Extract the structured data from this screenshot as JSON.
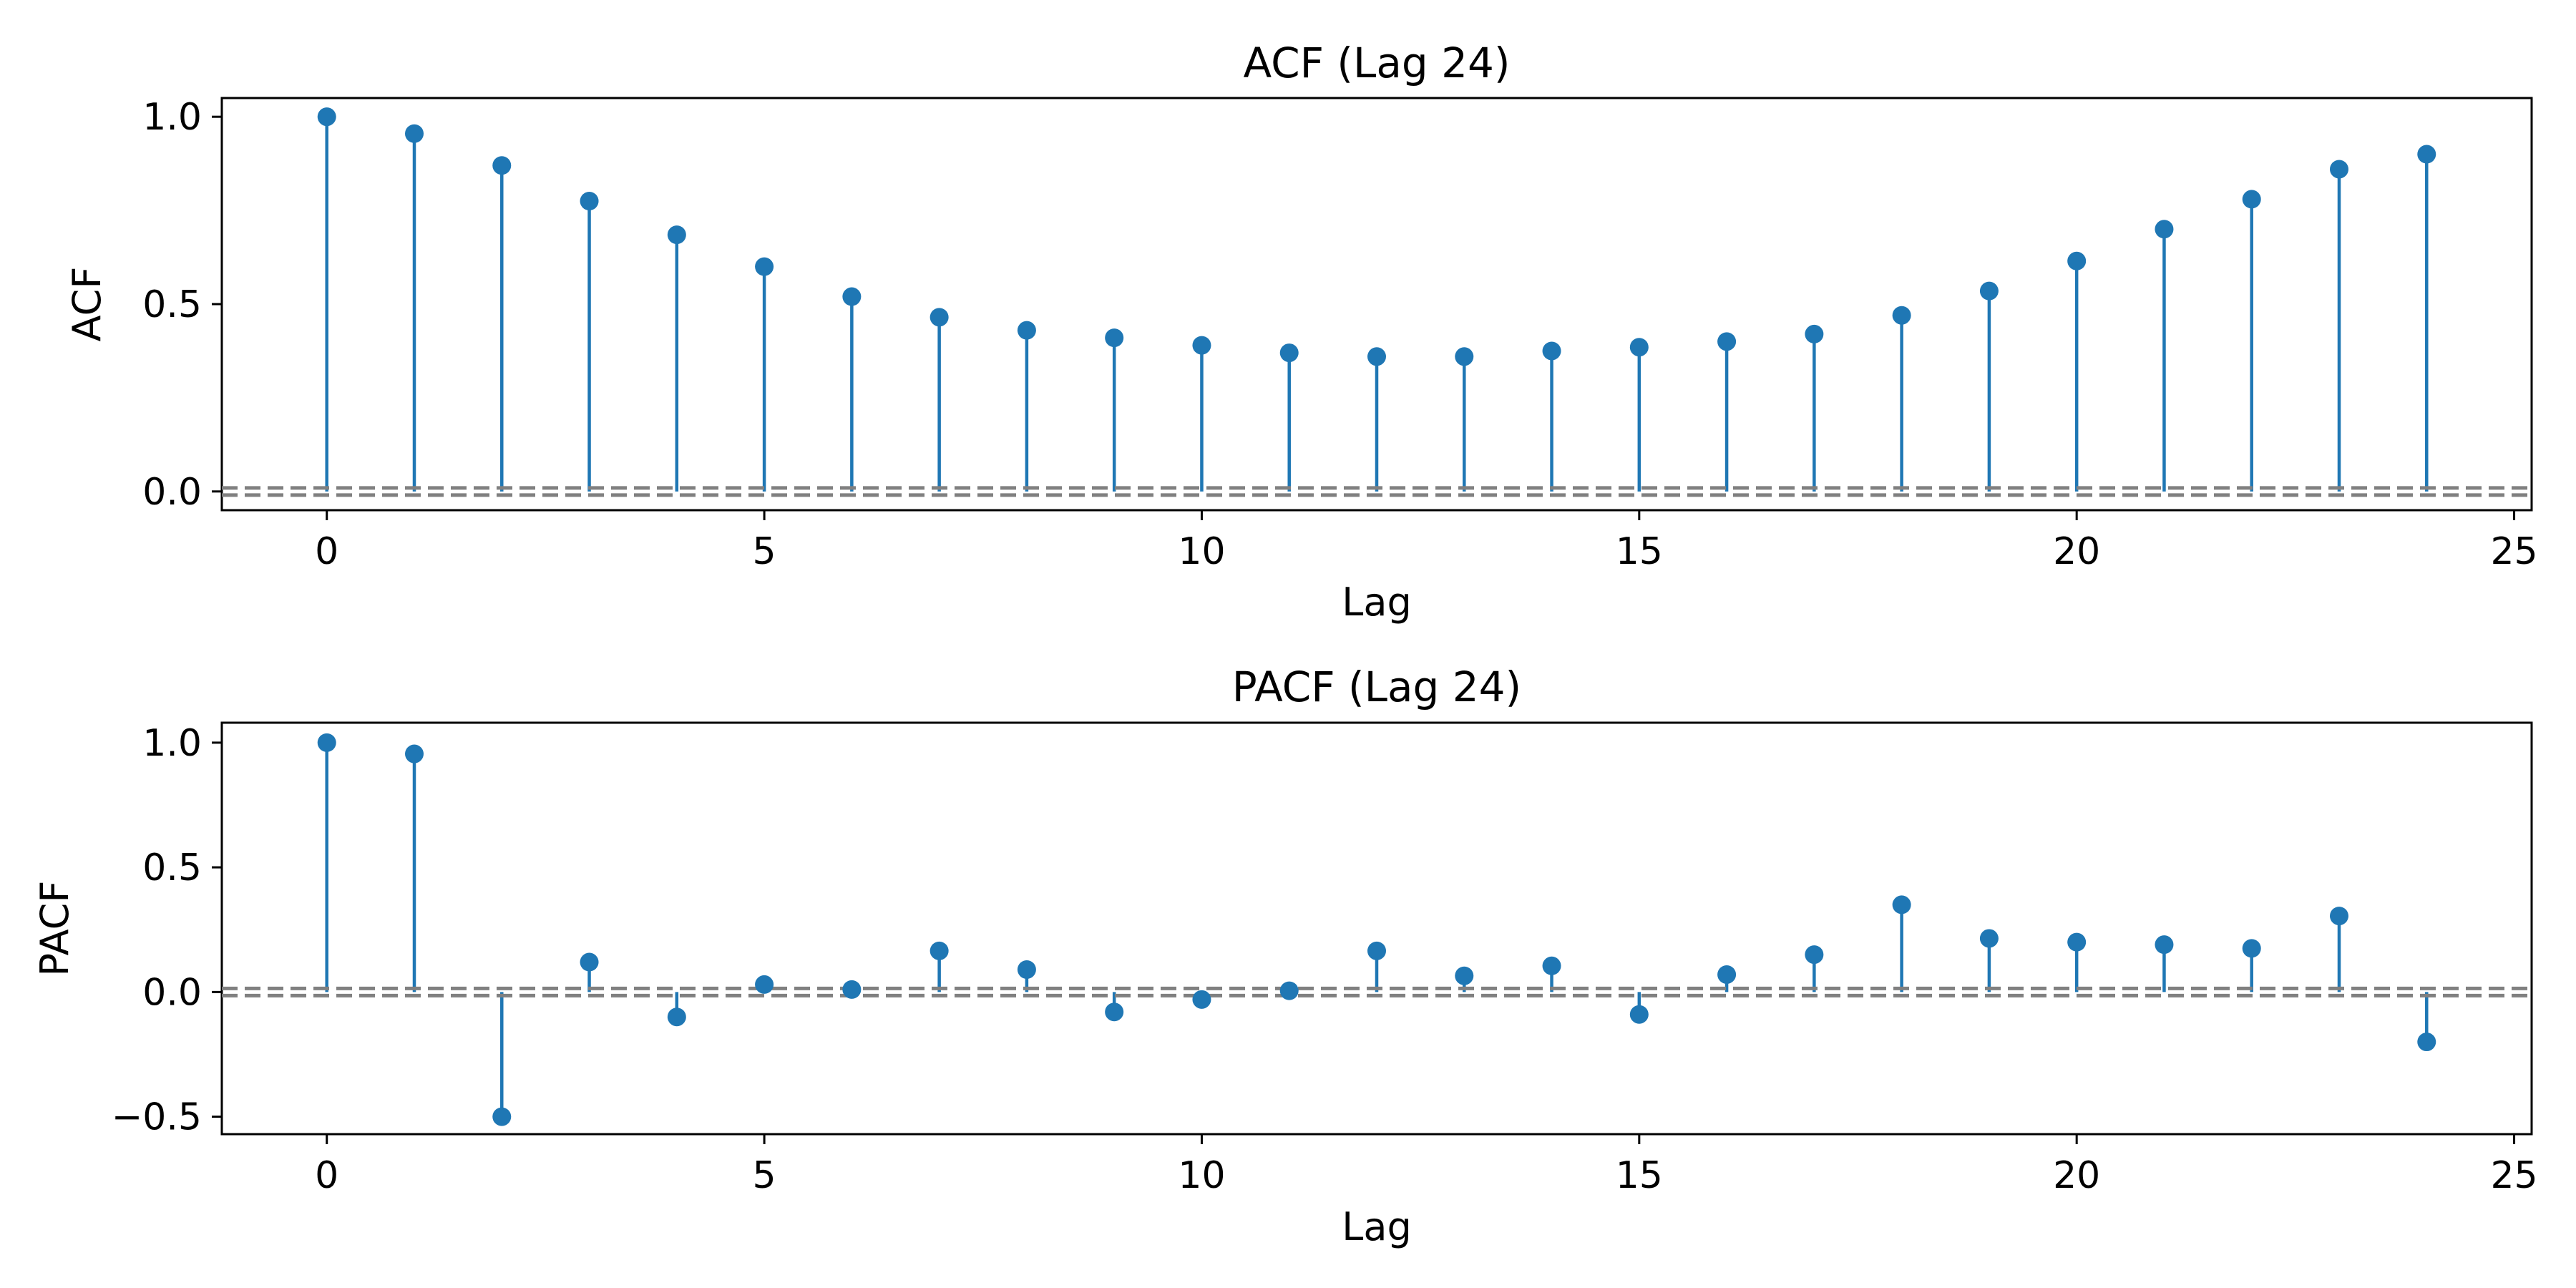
{
  "chart_data": [
    {
      "type": "stem",
      "title": "ACF (Lag 24)",
      "xlabel": "Lag",
      "ylabel": "ACF",
      "xlim": [
        -1.2,
        25.2
      ],
      "ylim": [
        -0.05,
        1.05
      ],
      "xticks": [
        0,
        5,
        10,
        15,
        20,
        25
      ],
      "xtick_labels": [
        "0",
        "5",
        "10",
        "15",
        "20",
        "25"
      ],
      "yticks": [
        0.0,
        0.5,
        1.0
      ],
      "ytick_labels": [
        "0.0",
        "0.5",
        "1.0"
      ],
      "reference_lines": [
        0.0
      ],
      "grid": false,
      "series_color": "#1f77b4",
      "reference_color": "#808080",
      "x": [
        0,
        1,
        2,
        3,
        4,
        5,
        6,
        7,
        8,
        9,
        10,
        11,
        12,
        13,
        14,
        15,
        16,
        17,
        18,
        19,
        20,
        21,
        22,
        23,
        24
      ],
      "values": [
        1.0,
        0.955,
        0.87,
        0.775,
        0.685,
        0.6,
        0.52,
        0.465,
        0.43,
        0.41,
        0.39,
        0.37,
        0.36,
        0.36,
        0.375,
        0.385,
        0.4,
        0.42,
        0.47,
        0.535,
        0.615,
        0.7,
        0.78,
        0.86,
        0.9
      ]
    },
    {
      "type": "stem",
      "title": "PACF (Lag 24)",
      "xlabel": "Lag",
      "ylabel": "PACF",
      "xlim": [
        -1.2,
        25.2
      ],
      "ylim": [
        -0.57,
        1.08
      ],
      "xticks": [
        0,
        5,
        10,
        15,
        20,
        25
      ],
      "xtick_labels": [
        "0",
        "5",
        "10",
        "15",
        "20",
        "25"
      ],
      "yticks": [
        -0.5,
        0.0,
        0.5,
        1.0
      ],
      "ytick_labels": [
        "−0.5",
        "0.0",
        "0.5",
        "1.0"
      ],
      "reference_lines": [
        0.0
      ],
      "grid": false,
      "series_color": "#1f77b4",
      "reference_color": "#808080",
      "x": [
        0,
        1,
        2,
        3,
        4,
        5,
        6,
        7,
        8,
        9,
        10,
        11,
        12,
        13,
        14,
        15,
        16,
        17,
        18,
        19,
        20,
        21,
        22,
        23,
        24
      ],
      "values": [
        1.0,
        0.955,
        -0.5,
        0.12,
        -0.1,
        0.03,
        0.01,
        0.165,
        0.09,
        -0.08,
        -0.03,
        0.005,
        0.165,
        0.065,
        0.105,
        -0.09,
        0.07,
        0.15,
        0.35,
        0.215,
        0.2,
        0.19,
        0.175,
        0.305,
        -0.2
      ]
    }
  ]
}
